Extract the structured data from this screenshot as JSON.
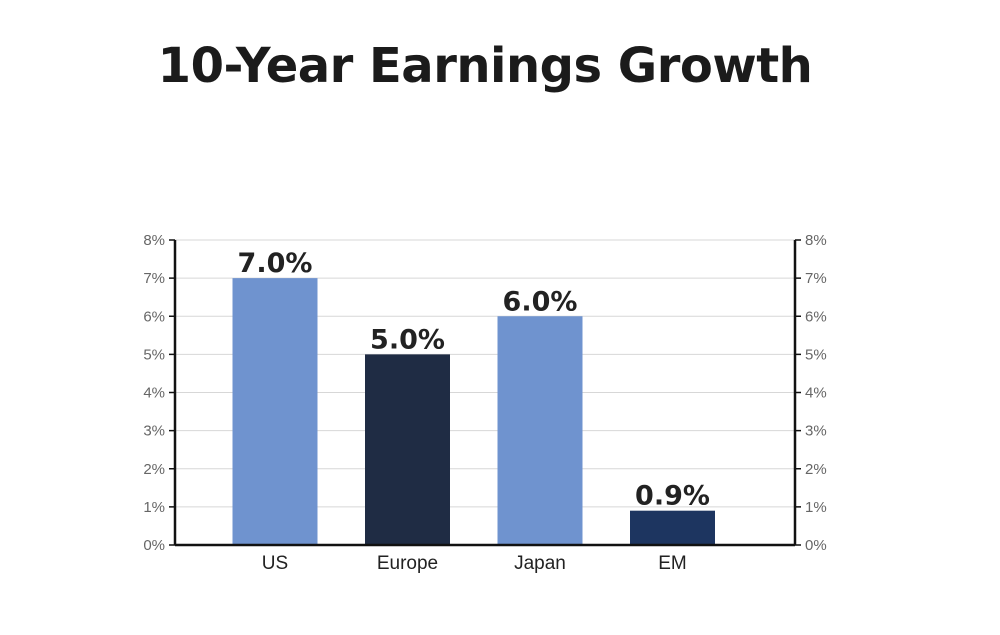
{
  "chart_data": {
    "type": "bar",
    "title": "10-Year Earnings Growth",
    "categories": [
      "US",
      "Europe",
      "Japan",
      "EM"
    ],
    "values": [
      7.0,
      5.0,
      6.0,
      0.9
    ],
    "value_labels": [
      "7.0%",
      "5.0%",
      "6.0%",
      "0.9%"
    ],
    "bar_colors": [
      "#6f93cf",
      "#1f2c44",
      "#6f93cf",
      "#1d3560"
    ],
    "ylim": [
      0,
      8
    ],
    "yticks": [
      "0%",
      "1%",
      "2%",
      "3%",
      "4%",
      "5%",
      "6%",
      "7%",
      "8%"
    ],
    "secondary_yticks": [
      "0%",
      "1%",
      "2%",
      "3%",
      "4%",
      "5%",
      "6%",
      "7%",
      "8%"
    ],
    "xlabel": "",
    "ylabel": "",
    "grid": true
  }
}
